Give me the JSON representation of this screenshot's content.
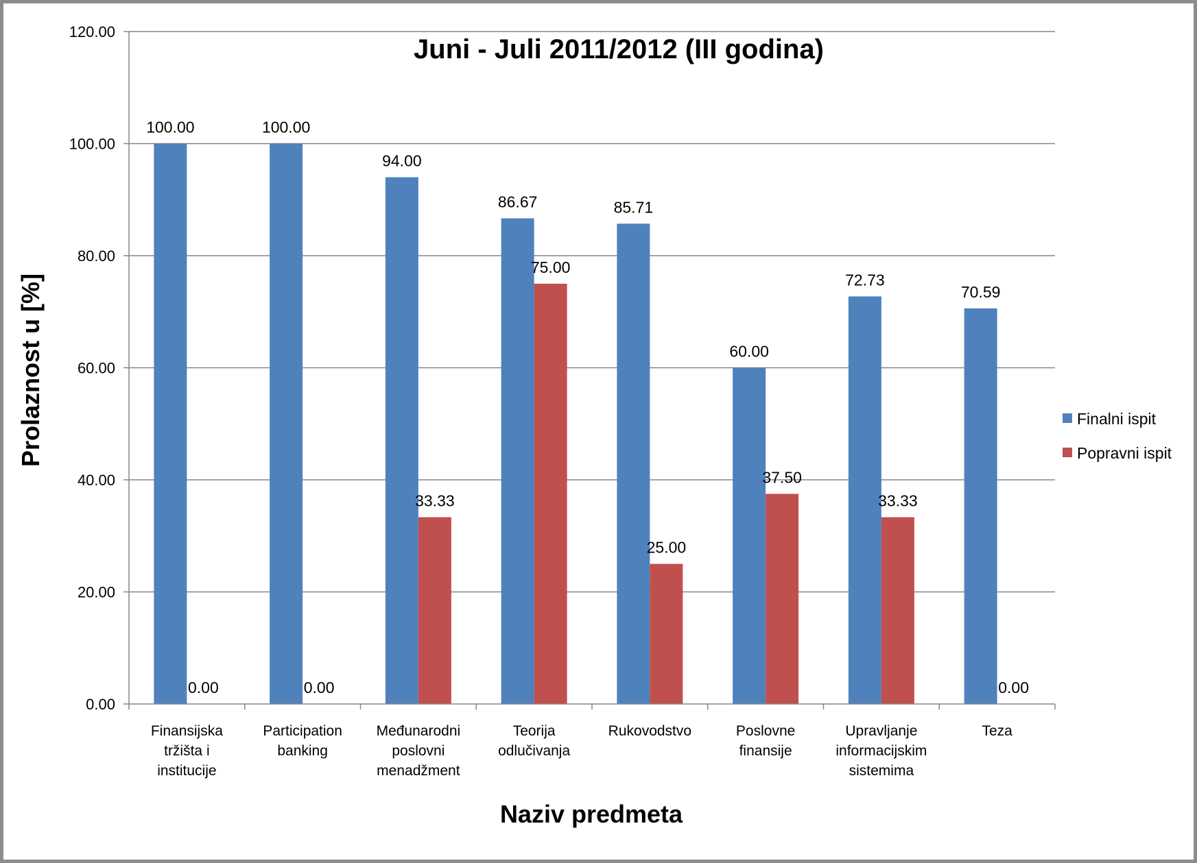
{
  "chart_data": {
    "type": "bar",
    "title": "Juni - Juli 2011/2012 (III godina)",
    "xlabel": "Naziv predmeta",
    "ylabel": "Prolaznost u [%]",
    "ylim": [
      0,
      120
    ],
    "yticks": [
      "0.00",
      "20.00",
      "40.00",
      "60.00",
      "80.00",
      "100.00",
      "120.00"
    ],
    "grid": true,
    "legend_position": "right",
    "categories": [
      [
        "Finansijska",
        "tržišta i",
        "institucije"
      ],
      [
        "Participation",
        "banking"
      ],
      [
        "Međunarodni",
        "poslovni",
        "menadžment"
      ],
      [
        "Teorija",
        "odlučivanja"
      ],
      [
        "Rukovodstvo"
      ],
      [
        "Poslovne",
        "finansije"
      ],
      [
        "Upravljanje",
        "informacijskim",
        "sistemima"
      ],
      [
        "Teza"
      ]
    ],
    "series": [
      {
        "name": "Finalni ispit",
        "color": "#4F81BD",
        "values": [
          100.0,
          100.0,
          94.0,
          86.67,
          85.71,
          60.0,
          72.73,
          70.59
        ],
        "labels": [
          "100.00",
          "100.00",
          "94.00",
          "86.67",
          "85.71",
          "60.00",
          "72.73",
          "70.59"
        ]
      },
      {
        "name": "Popravni ispit",
        "color": "#C0504D",
        "values": [
          0.0,
          0.0,
          33.33,
          75.0,
          25.0,
          37.5,
          33.33,
          0.0
        ],
        "labels": [
          "0.00",
          "0.00",
          "33.33",
          "75.00",
          "25.00",
          "37.50",
          "33.33",
          "0.00"
        ]
      }
    ]
  }
}
